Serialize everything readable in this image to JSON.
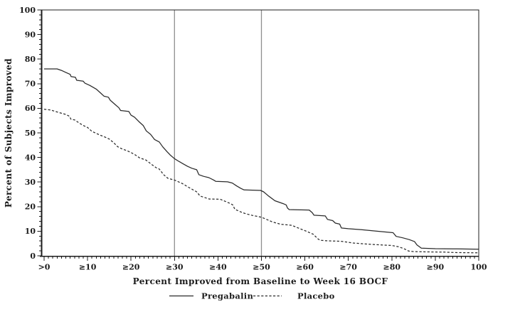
{
  "chart_data": {
    "type": "line",
    "title": "",
    "xlabel": "Percent Improved from Baseline to Week 16 BOCF",
    "ylabel": "Percent of Subjects Improved",
    "xlim": [
      0,
      100
    ],
    "ylim": [
      0,
      100
    ],
    "grid": false,
    "legend_position": "bottom",
    "x_ticks": {
      "values": [
        0,
        10,
        20,
        30,
        40,
        50,
        60,
        70,
        80,
        90,
        100
      ],
      "labels": [
        ">0",
        "≥10",
        "≥20",
        "≥30",
        "≥40",
        "≥50",
        "≥60",
        "≥70",
        "≥80",
        "≥90",
        "100"
      ]
    },
    "y_ticks": {
      "values": [
        0,
        10,
        20,
        30,
        40,
        50,
        60,
        70,
        80,
        90,
        100
      ],
      "labels": [
        "0",
        "10",
        "20",
        "30",
        "40",
        "50",
        "60",
        "70",
        "80",
        "90",
        "100"
      ]
    },
    "x_minor_step": 1,
    "y_minor_step": 2,
    "reference_lines_x": [
      30,
      50
    ],
    "reference_line_color": "#8e8e8e",
    "series": [
      {
        "name": "Pregabalin",
        "style": "solid",
        "color": "#2a2a2a",
        "points": [
          [
            0,
            76
          ],
          [
            3,
            76
          ],
          [
            4,
            75.4
          ],
          [
            5,
            74.6
          ],
          [
            6,
            73.8
          ],
          [
            6.2,
            72.9
          ],
          [
            7.2,
            72.6
          ],
          [
            7.5,
            71.4
          ],
          [
            9,
            71
          ],
          [
            9.4,
            70.2
          ],
          [
            10.5,
            69.3
          ],
          [
            12,
            67.8
          ],
          [
            13,
            66.2
          ],
          [
            13.8,
            64.9
          ],
          [
            14.8,
            64.5
          ],
          [
            15.2,
            63.3
          ],
          [
            16.3,
            61.6
          ],
          [
            17.2,
            60.2
          ],
          [
            17.6,
            59.1
          ],
          [
            19.5,
            58.7
          ],
          [
            20,
            57.2
          ],
          [
            20.8,
            56.4
          ],
          [
            21.8,
            54.6
          ],
          [
            22.8,
            53
          ],
          [
            23.5,
            50.8
          ],
          [
            24.5,
            49.4
          ],
          [
            25.4,
            47.3
          ],
          [
            26.5,
            46.3
          ],
          [
            27.3,
            44.3
          ],
          [
            28.3,
            42.3
          ],
          [
            29,
            41
          ],
          [
            30,
            39.5
          ],
          [
            31,
            38.4
          ],
          [
            31.8,
            37.6
          ],
          [
            33,
            36.4
          ],
          [
            34,
            35.6
          ],
          [
            35.1,
            35
          ],
          [
            35.6,
            33
          ],
          [
            36.7,
            32.3
          ],
          [
            37.9,
            31.8
          ],
          [
            38.9,
            30.9
          ],
          [
            39.5,
            30.3
          ],
          [
            42.2,
            30.1
          ],
          [
            43.3,
            29.6
          ],
          [
            44.3,
            28.4
          ],
          [
            45.2,
            27.5
          ],
          [
            46,
            26.8
          ],
          [
            49.8,
            26.6
          ],
          [
            50.5,
            26
          ],
          [
            51.5,
            24.5
          ],
          [
            53.1,
            22.4
          ],
          [
            55,
            21.2
          ],
          [
            55.7,
            20.7
          ],
          [
            56,
            19.4
          ],
          [
            56.4,
            18.8
          ],
          [
            61,
            18.6
          ],
          [
            61.7,
            17.5
          ],
          [
            62.1,
            16.5
          ],
          [
            64.7,
            16.2
          ],
          [
            65.2,
            14.8
          ],
          [
            66.4,
            14.3
          ],
          [
            67,
            13.3
          ],
          [
            68,
            12.9
          ],
          [
            68.4,
            11.3
          ],
          [
            70,
            11
          ],
          [
            73,
            10.6
          ],
          [
            76.6,
            10
          ],
          [
            80.3,
            9.4
          ],
          [
            81,
            7.9
          ],
          [
            82.5,
            7.3
          ],
          [
            84,
            6.6
          ],
          [
            85.2,
            5.8
          ],
          [
            85.8,
            4.4
          ],
          [
            86.8,
            3.1
          ],
          [
            90,
            2.9
          ],
          [
            95,
            2.8
          ],
          [
            100,
            2.7
          ]
        ]
      },
      {
        "name": "Placebo",
        "style": "dashed",
        "color": "#2a2a2a",
        "points": [
          [
            0,
            59.6
          ],
          [
            1.5,
            59.3
          ],
          [
            3,
            58.5
          ],
          [
            5,
            57.5
          ],
          [
            5.8,
            56.8
          ],
          [
            6.2,
            55.5
          ],
          [
            7,
            55.3
          ],
          [
            8,
            54.1
          ],
          [
            9,
            53
          ],
          [
            10,
            52.2
          ],
          [
            11,
            50.6
          ],
          [
            12,
            49.8
          ],
          [
            13,
            49
          ],
          [
            13.6,
            48.6
          ],
          [
            15,
            47.5
          ],
          [
            16,
            46
          ],
          [
            16.9,
            44.4
          ],
          [
            18,
            43.4
          ],
          [
            19,
            42.8
          ],
          [
            20,
            42
          ],
          [
            21,
            41
          ],
          [
            22,
            39.8
          ],
          [
            23.4,
            39
          ],
          [
            24.5,
            37.5
          ],
          [
            25.8,
            35.8
          ],
          [
            26.5,
            35.3
          ],
          [
            27.5,
            33
          ],
          [
            28.5,
            31.5
          ],
          [
            30,
            30.8
          ],
          [
            31.8,
            29.4
          ],
          [
            33.2,
            27.9
          ],
          [
            35.1,
            26
          ],
          [
            35.9,
            24.3
          ],
          [
            37.3,
            23.5
          ],
          [
            38,
            23.1
          ],
          [
            40.5,
            23
          ],
          [
            41.6,
            22.2
          ],
          [
            42.9,
            21.2
          ],
          [
            43.4,
            20.7
          ],
          [
            43.9,
            18.9
          ],
          [
            45.3,
            17.8
          ],
          [
            46.4,
            17.1
          ],
          [
            48,
            16.4
          ],
          [
            50,
            15.7
          ],
          [
            51.2,
            14.8
          ],
          [
            52.5,
            13.8
          ],
          [
            54.5,
            12.8
          ],
          [
            57,
            12.4
          ],
          [
            58.6,
            11.2
          ],
          [
            60.2,
            10.1
          ],
          [
            61.9,
            8.8
          ],
          [
            63,
            6.9
          ],
          [
            63.5,
            6.3
          ],
          [
            65,
            6.1
          ],
          [
            68.4,
            5.9
          ],
          [
            71.1,
            5.2
          ],
          [
            74,
            4.8
          ],
          [
            76.6,
            4.5
          ],
          [
            80,
            4.2
          ],
          [
            81.5,
            3.7
          ],
          [
            82.8,
            2.9
          ],
          [
            83.9,
            1.9
          ],
          [
            85,
            1.7
          ],
          [
            88,
            1.6
          ],
          [
            92,
            1.5
          ],
          [
            95,
            1.3
          ],
          [
            100,
            1.2
          ]
        ]
      }
    ]
  },
  "legend": {
    "items": [
      {
        "label": "Pregabalin",
        "style": "solid"
      },
      {
        "label": "Placebo",
        "style": "dashed"
      }
    ]
  }
}
